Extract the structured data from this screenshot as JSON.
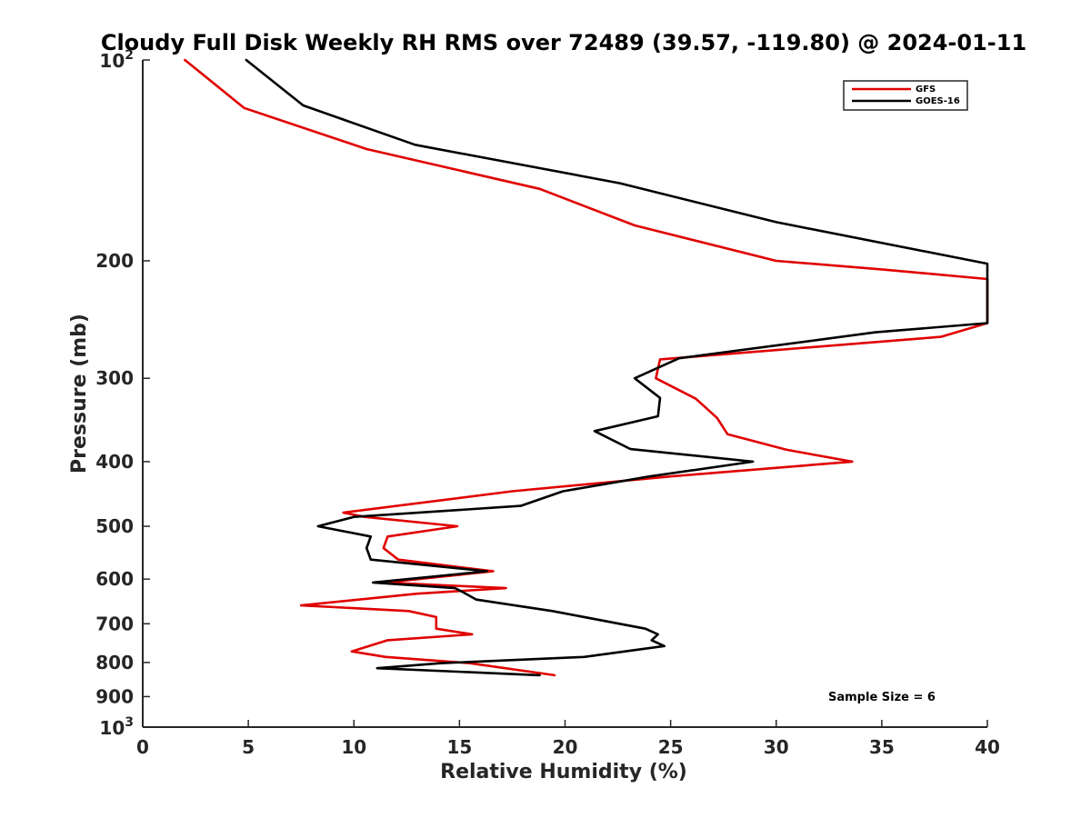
{
  "chart_data": {
    "type": "line",
    "title": "Cloudy Full Disk Weekly RH RMS over 72489 (39.57, -119.80) @ 2024-01-11",
    "xlabel": "Relative Humidity (%)",
    "ylabel": "Pressure (mb)",
    "xlim": [
      0,
      40
    ],
    "ylim": [
      100,
      1000
    ],
    "y_scale": "log",
    "y_reversed": true,
    "grid": false,
    "legend_position": "top-right",
    "x_ticks": [
      0,
      5,
      10,
      15,
      20,
      25,
      30,
      35,
      40
    ],
    "x_tick_labels": [
      "0",
      "5",
      "10",
      "15",
      "20",
      "25",
      "30",
      "35",
      "40"
    ],
    "y_ticks": [
      200,
      300,
      400,
      500,
      600,
      700,
      800,
      900
    ],
    "y_tick_labels": [
      "200",
      "300",
      "400",
      "500",
      "600",
      "700",
      "800",
      "900"
    ],
    "y_end_labels": [
      {
        "value": 100,
        "base": "10",
        "exp": "2"
      },
      {
        "value": 1000,
        "base": "10",
        "exp": "3"
      }
    ],
    "annotation": "Sample Size = 6",
    "series": [
      {
        "name": "GFS",
        "color": "#e00000",
        "points": [
          [
            2.0,
            100
          ],
          [
            4.8,
            118
          ],
          [
            10.6,
            136
          ],
          [
            18.8,
            156
          ],
          [
            23.3,
            177
          ],
          [
            30.0,
            200
          ],
          [
            35.0,
            206
          ],
          [
            40.0,
            213
          ],
          [
            40.0,
            248
          ],
          [
            37.8,
            260
          ],
          [
            24.5,
            281
          ],
          [
            24.3,
            300
          ],
          [
            26.2,
            322
          ],
          [
            27.2,
            344
          ],
          [
            27.7,
            364
          ],
          [
            30.5,
            384
          ],
          [
            33.6,
            400
          ],
          [
            25.0,
            421
          ],
          [
            17.5,
            443
          ],
          [
            9.5,
            477
          ],
          [
            10.5,
            484
          ],
          [
            14.9,
            500
          ],
          [
            11.6,
            518
          ],
          [
            11.4,
            539
          ],
          [
            12.1,
            561
          ],
          [
            16.6,
            584
          ],
          [
            11.5,
            607
          ],
          [
            17.2,
            619
          ],
          [
            13.0,
            631
          ],
          [
            7.5,
            657
          ],
          [
            12.6,
            670
          ],
          [
            13.9,
            684
          ],
          [
            13.9,
            712
          ],
          [
            15.6,
            726
          ],
          [
            11.6,
            741
          ],
          [
            9.9,
            770
          ],
          [
            11.5,
            785
          ],
          [
            15.5,
            802
          ],
          [
            19.5,
            836
          ]
        ]
      },
      {
        "name": "GOES-16",
        "color": "#000000",
        "points": [
          [
            4.9,
            100
          ],
          [
            7.6,
            117
          ],
          [
            12.9,
            134
          ],
          [
            22.6,
            153
          ],
          [
            30.0,
            175
          ],
          [
            40.0,
            202
          ],
          [
            40.0,
            248
          ],
          [
            34.7,
            256
          ],
          [
            25.4,
            280
          ],
          [
            23.3,
            300
          ],
          [
            24.5,
            321
          ],
          [
            24.4,
            342
          ],
          [
            21.4,
            360
          ],
          [
            23.1,
            383
          ],
          [
            28.9,
            400
          ],
          [
            24.0,
            421
          ],
          [
            19.9,
            443
          ],
          [
            17.9,
            466
          ],
          [
            10.0,
            484
          ],
          [
            8.3,
            500
          ],
          [
            10.8,
            518
          ],
          [
            10.6,
            539
          ],
          [
            10.8,
            561
          ],
          [
            16.3,
            584
          ],
          [
            10.9,
            607
          ],
          [
            14.8,
            619
          ],
          [
            15.3,
            631
          ],
          [
            15.8,
            644
          ],
          [
            19.4,
            670
          ],
          [
            23.8,
            712
          ],
          [
            24.4,
            726
          ],
          [
            24.1,
            741
          ],
          [
            24.7,
            756
          ],
          [
            20.9,
            785
          ],
          [
            14.1,
            802
          ],
          [
            11.1,
            816
          ],
          [
            18.8,
            836
          ]
        ]
      }
    ]
  }
}
